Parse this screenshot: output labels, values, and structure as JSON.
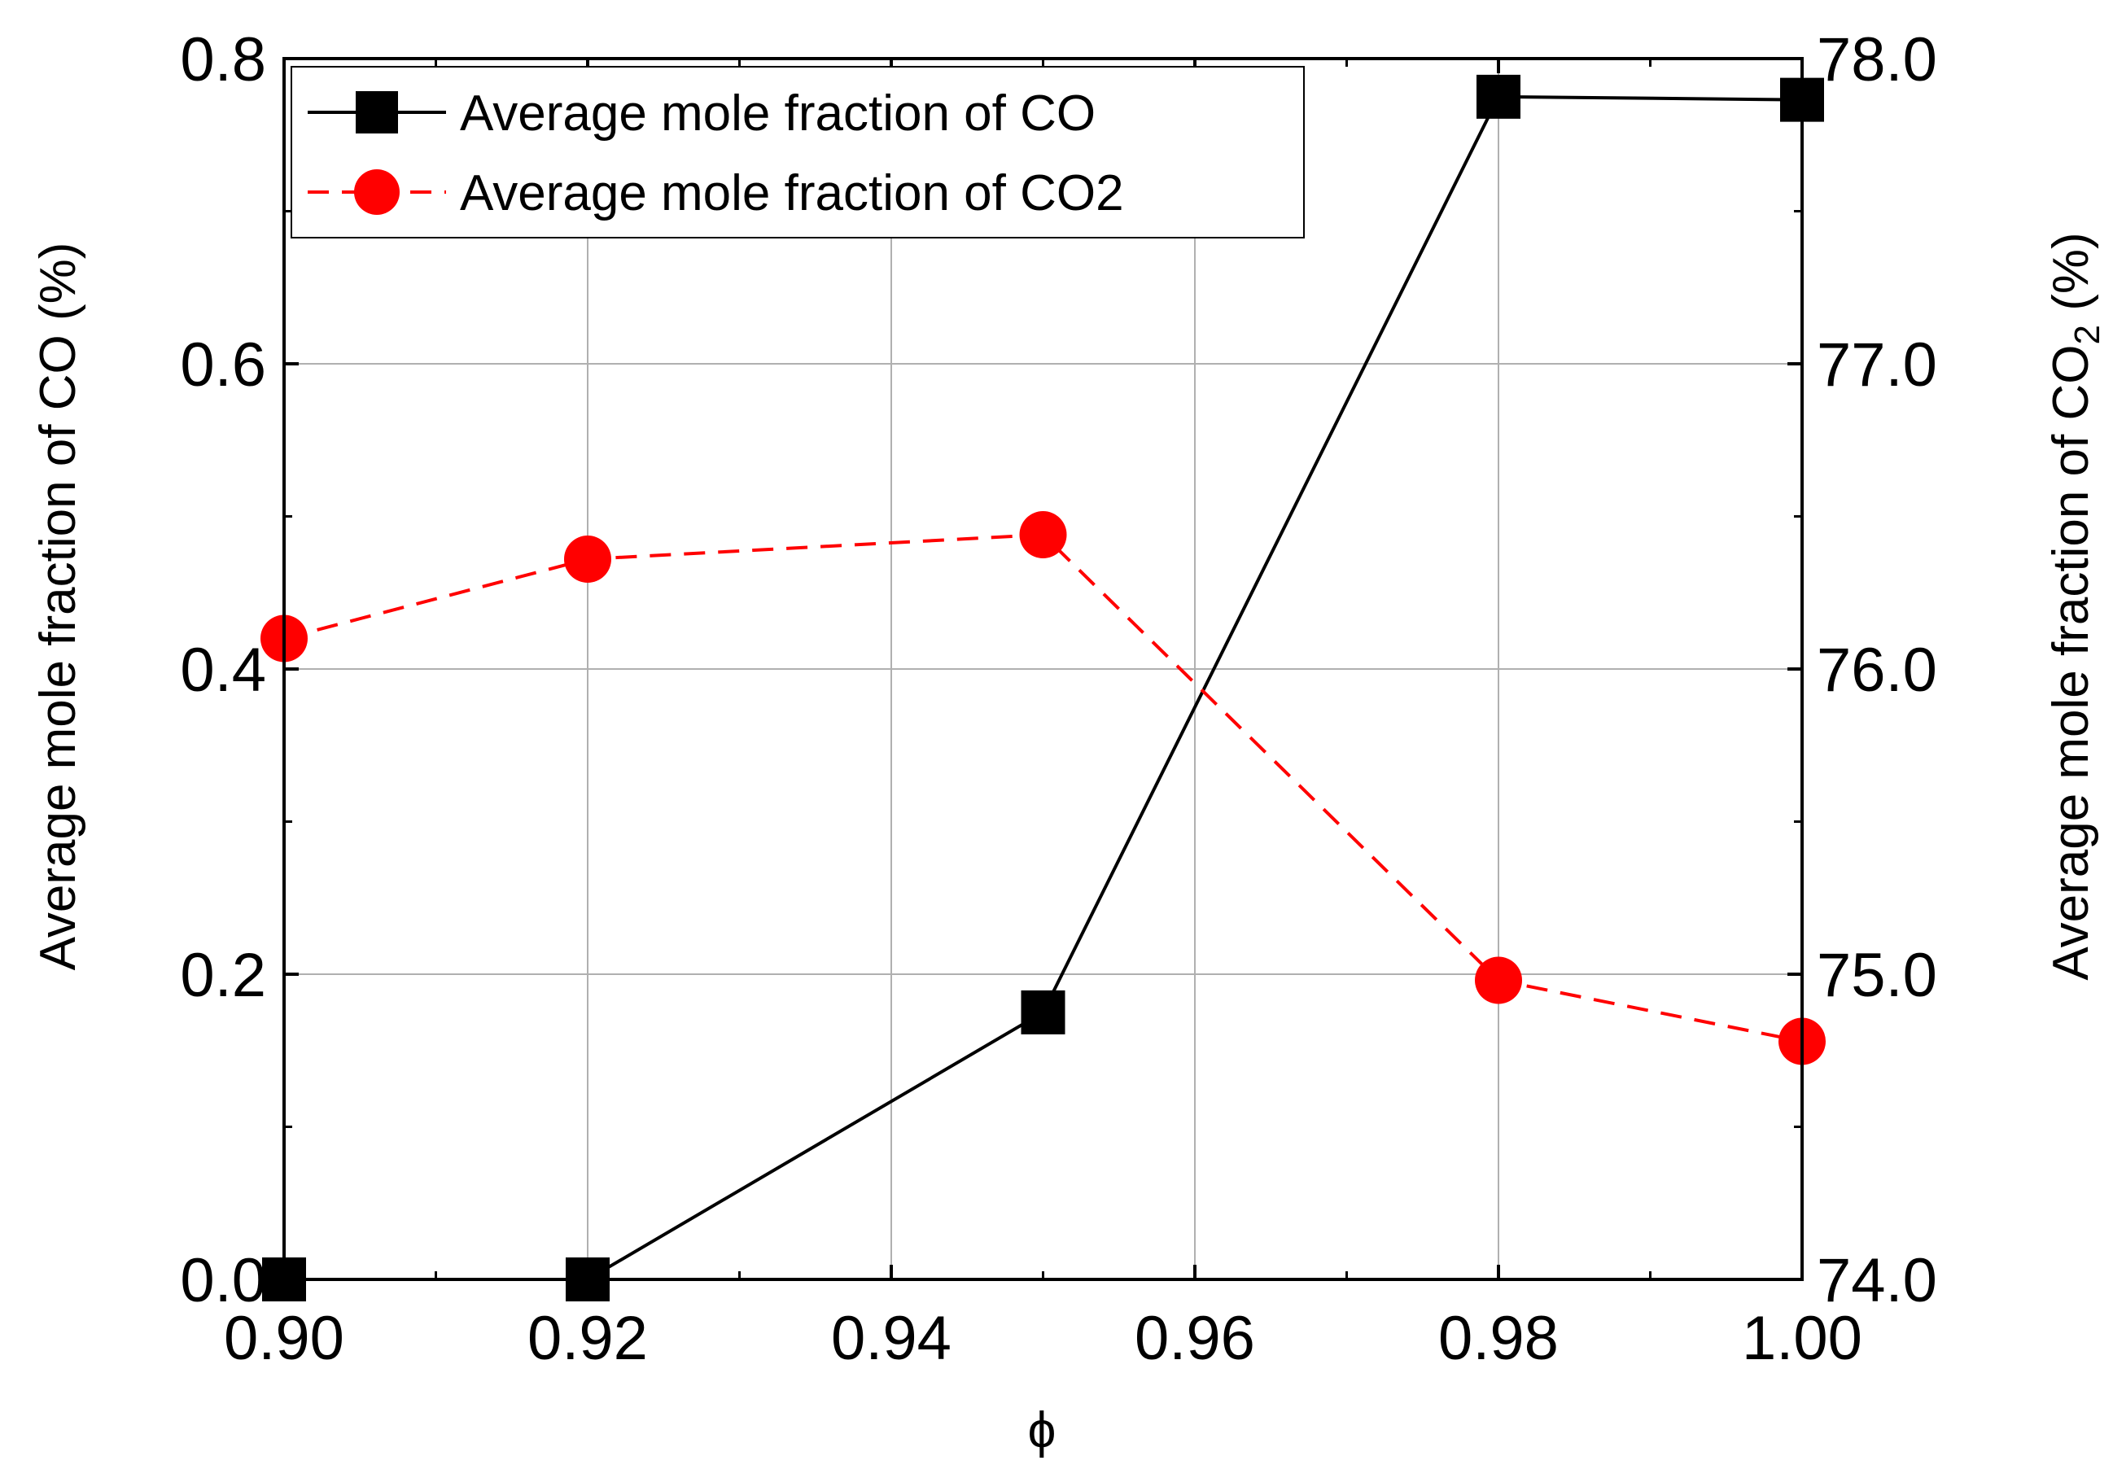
{
  "chart_data": {
    "type": "line",
    "title": "",
    "xlabel": "ϕ",
    "ylabel": "Average mole fraction of CO (%)",
    "y2label_main": "Average mole fraction of CO",
    "y2label_sub": "2",
    "y2label_suffix": " (%)",
    "xlim": [
      0.9,
      1.0
    ],
    "ylim": [
      0.0,
      0.8
    ],
    "y2lim": [
      74.0,
      78.0
    ],
    "x_ticks": [
      "0.90",
      "0.92",
      "0.94",
      "0.96",
      "0.98",
      "1.00"
    ],
    "y_ticks": [
      "0.0",
      "0.2",
      "0.4",
      "0.6",
      "0.8"
    ],
    "y2_ticks": [
      "74.0",
      "75.0",
      "76.0",
      "77.0",
      "78.0"
    ],
    "grid": true,
    "legend_position": "top-left",
    "series": [
      {
        "name": "Average mole fraction of CO",
        "axis": "left",
        "color": "#000000",
        "marker": "square",
        "line_style": "solid",
        "x": [
          0.9,
          0.92,
          0.95,
          0.98,
          1.0
        ],
        "y": [
          0.0,
          0.0,
          0.175,
          0.775,
          0.773
        ]
      },
      {
        "name": "Average mole fraction of CO2",
        "axis": "right",
        "color": "#ff0000",
        "marker": "circle",
        "line_style": "dashed",
        "x": [
          0.9,
          0.92,
          0.95,
          0.98,
          1.0
        ],
        "y": [
          76.1,
          76.36,
          76.44,
          74.98,
          74.78
        ]
      }
    ]
  }
}
